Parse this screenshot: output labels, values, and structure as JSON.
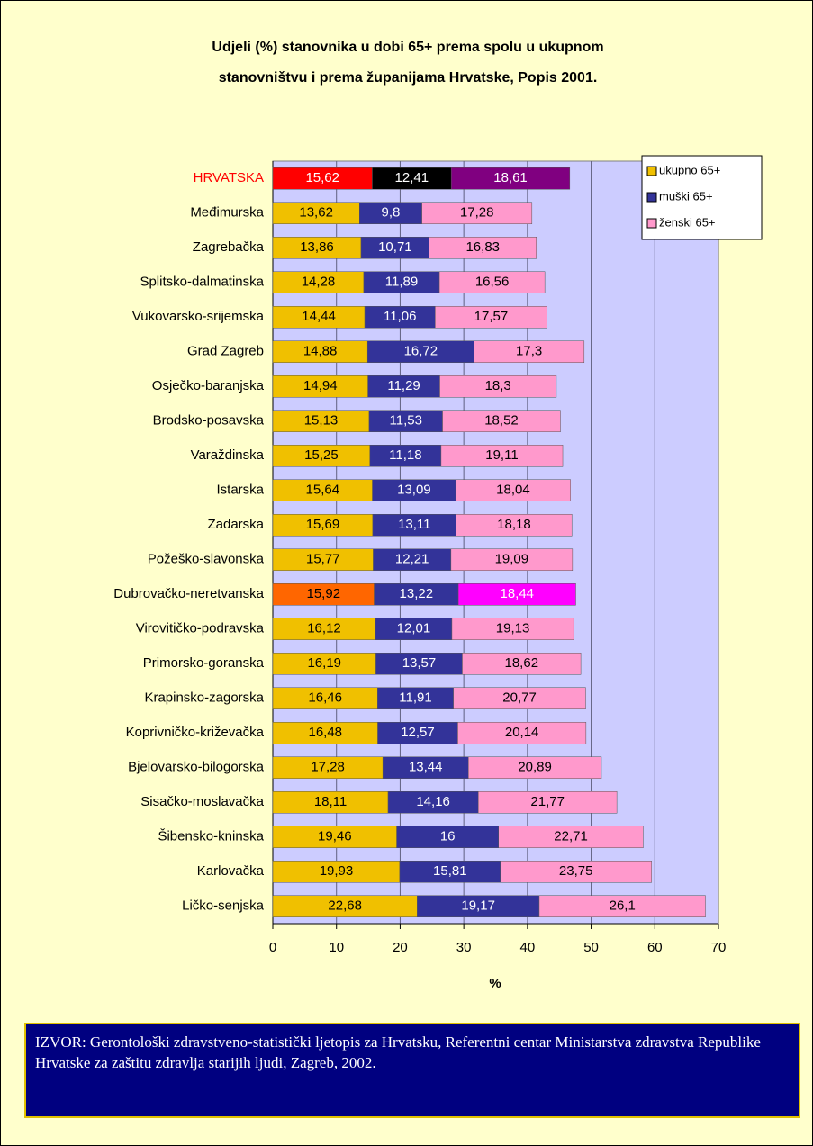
{
  "chart_data": {
    "type": "stacked_barh",
    "title_lines": [
      "Udjeli (%) stanovnika u dobi 65+ prema spolu u ukupnom",
      "stanovništvu i prema županijama Hrvatske, Popis 2001."
    ],
    "xlabel": "%",
    "categories": [
      "HRVATSKA",
      "Međimurska",
      "Zagrebačka",
      "Splitsko-dalmatinska",
      "Vukovarsko-srijemska",
      "Grad Zagreb",
      "Osječko-baranjska",
      "Brodsko-posavska",
      "Varaždinska",
      "Istarska",
      "Zadarska",
      "Požeško-slavonska",
      "Dubrovačko-neretvanska",
      "Virovitičko-podravska",
      "Primorsko-goranska",
      "Krapinsko-zagorska",
      "Koprivničko-križevačka",
      "Bjelovarsko-bilogorska",
      "Sisačko-moslavačka",
      "Šibensko-kninska",
      "Karlovačka",
      "Ličko-senjska"
    ],
    "label_colors": [
      "#ff0000",
      "#000000",
      "#000000",
      "#000000",
      "#000000",
      "#000000",
      "#000000",
      "#000000",
      "#000000",
      "#000000",
      "#000000",
      "#000000",
      "#000000",
      "#000000",
      "#000000",
      "#000000",
      "#000000",
      "#000000",
      "#000000",
      "#000000",
      "#000000",
      "#000000"
    ],
    "series": [
      {
        "name": "ukupno 65+",
        "color": "#f0c000",
        "colors": [
          "#ff0000",
          "#f0c000",
          "#f0c000",
          "#f0c000",
          "#f0c000",
          "#f0c000",
          "#f0c000",
          "#f0c000",
          "#f0c000",
          "#f0c000",
          "#f0c000",
          "#f0c000",
          "#ff6600",
          "#f0c000",
          "#f0c000",
          "#f0c000",
          "#f0c000",
          "#f0c000",
          "#f0c000",
          "#f0c000",
          "#f0c000",
          "#f0c000"
        ],
        "values": [
          15.62,
          13.62,
          13.86,
          14.28,
          14.44,
          14.88,
          14.94,
          15.13,
          15.25,
          15.64,
          15.69,
          15.77,
          15.92,
          16.12,
          16.19,
          16.46,
          16.48,
          17.28,
          18.11,
          19.46,
          19.93,
          22.68
        ],
        "value_labels": [
          "15,62",
          "13,62",
          "13,86",
          "14,28",
          "14,44",
          "14,88",
          "14,94",
          "15,13",
          "15,25",
          "15,64",
          "15,69",
          "15,77",
          "15,92",
          "16,12",
          "16,19",
          "16,46",
          "16,48",
          "17,28",
          "18,11",
          "19,46",
          "19,93",
          "22,68"
        ]
      },
      {
        "name": "muški 65+",
        "color": "#333399",
        "colors": [
          "#000000",
          "#333399",
          "#333399",
          "#333399",
          "#333399",
          "#333399",
          "#333399",
          "#333399",
          "#333399",
          "#333399",
          "#333399",
          "#333399",
          "#333399",
          "#333399",
          "#333399",
          "#333399",
          "#333399",
          "#333399",
          "#333399",
          "#333399",
          "#333399",
          "#333399"
        ],
        "values": [
          12.41,
          9.8,
          10.71,
          11.89,
          11.06,
          16.72,
          11.29,
          11.53,
          11.18,
          13.09,
          13.11,
          12.21,
          13.22,
          12.01,
          13.57,
          11.91,
          12.57,
          13.44,
          14.16,
          16,
          15.81,
          19.17
        ],
        "value_labels": [
          "12,41",
          "9,8",
          "10,71",
          "11,89",
          "11,06",
          "16,72",
          "11,29",
          "11,53",
          "11,18",
          "13,09",
          "13,11",
          "12,21",
          "13,22",
          "12,01",
          "13,57",
          "11,91",
          "12,57",
          "13,44",
          "14,16",
          "16",
          "15,81",
          "19,17"
        ]
      },
      {
        "name": "ženski 65+",
        "color": "#ff99cc",
        "colors": [
          "#800080",
          "#ff99cc",
          "#ff99cc",
          "#ff99cc",
          "#ff99cc",
          "#ff99cc",
          "#ff99cc",
          "#ff99cc",
          "#ff99cc",
          "#ff99cc",
          "#ff99cc",
          "#ff99cc",
          "#ff00ff",
          "#ff99cc",
          "#ff99cc",
          "#ff99cc",
          "#ff99cc",
          "#ff99cc",
          "#ff99cc",
          "#ff99cc",
          "#ff99cc",
          "#ff99cc"
        ],
        "values": [
          18.61,
          17.28,
          16.83,
          16.56,
          17.57,
          17.3,
          18.3,
          18.52,
          19.11,
          18.04,
          18.18,
          19.09,
          18.44,
          19.13,
          18.62,
          20.77,
          20.14,
          20.89,
          21.77,
          22.71,
          23.75,
          26.1
        ],
        "value_labels": [
          "18,61",
          "17,28",
          "16,83",
          "16,56",
          "17,57",
          "17,3",
          "18,3",
          "18,52",
          "19,11",
          "18,04",
          "18,18",
          "19,09",
          "18,44",
          "19,13",
          "18,62",
          "20,77",
          "20,14",
          "20,89",
          "21,77",
          "22,71",
          "23,75",
          "26,1"
        ]
      }
    ],
    "xlim": [
      0,
      70
    ],
    "xticks": [
      0,
      10,
      20,
      30,
      40,
      50,
      60,
      70
    ],
    "grid": true,
    "legend": "upper right"
  },
  "source": "IZVOR: Gerontološki zdravstveno-statistički ljetopis za Hrvatsku, Referentni centar Ministarstva zdravstva Republike Hrvatske za zaštitu zdravlja starijih ljudi, Zagreb, 2002."
}
